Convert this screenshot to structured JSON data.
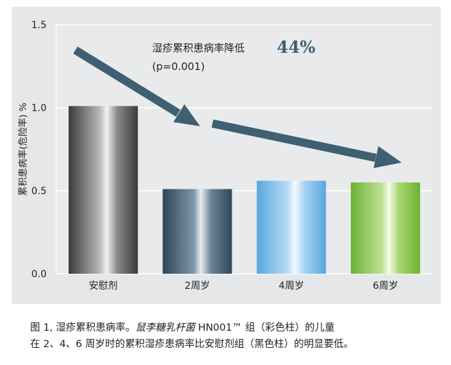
{
  "chart_data": {
    "type": "bar",
    "ylabel": "累积患病率(危险率) %",
    "ylim": [
      0,
      1.5
    ],
    "yticks": [
      "0.0",
      "0.5",
      "1.0",
      "1.5"
    ],
    "categories": [
      "安慰剂",
      "2周岁",
      "4周岁",
      "6周岁"
    ],
    "values": [
      1.01,
      0.51,
      0.56,
      0.55
    ],
    "bar_colors": [
      "#5a5a5a",
      "#35536a",
      "#6fb3e6",
      "#7cbe3e"
    ],
    "grid": true,
    "annotation": {
      "text": "湿疹累积患病率降低",
      "percent": "44%",
      "pvalue": "(p=0.001)"
    }
  },
  "caption": {
    "line1_prefix": "图 1, 湿疹累积患病率。",
    "line1_italic": "鼠李糖乳杆菌",
    "line1_suffix": " HN001™ 组（彩色柱）的儿童",
    "line2": "在 2、4、6 周岁时的累积湿疹患病率比安慰剂组（黑色柱）的明显要低。"
  },
  "colors": {
    "panel_bg": "#e6e7e8",
    "plot_bg": "#e9eaeb",
    "arrow": "#3f5f72",
    "accent_percent": "#3f5f72"
  }
}
